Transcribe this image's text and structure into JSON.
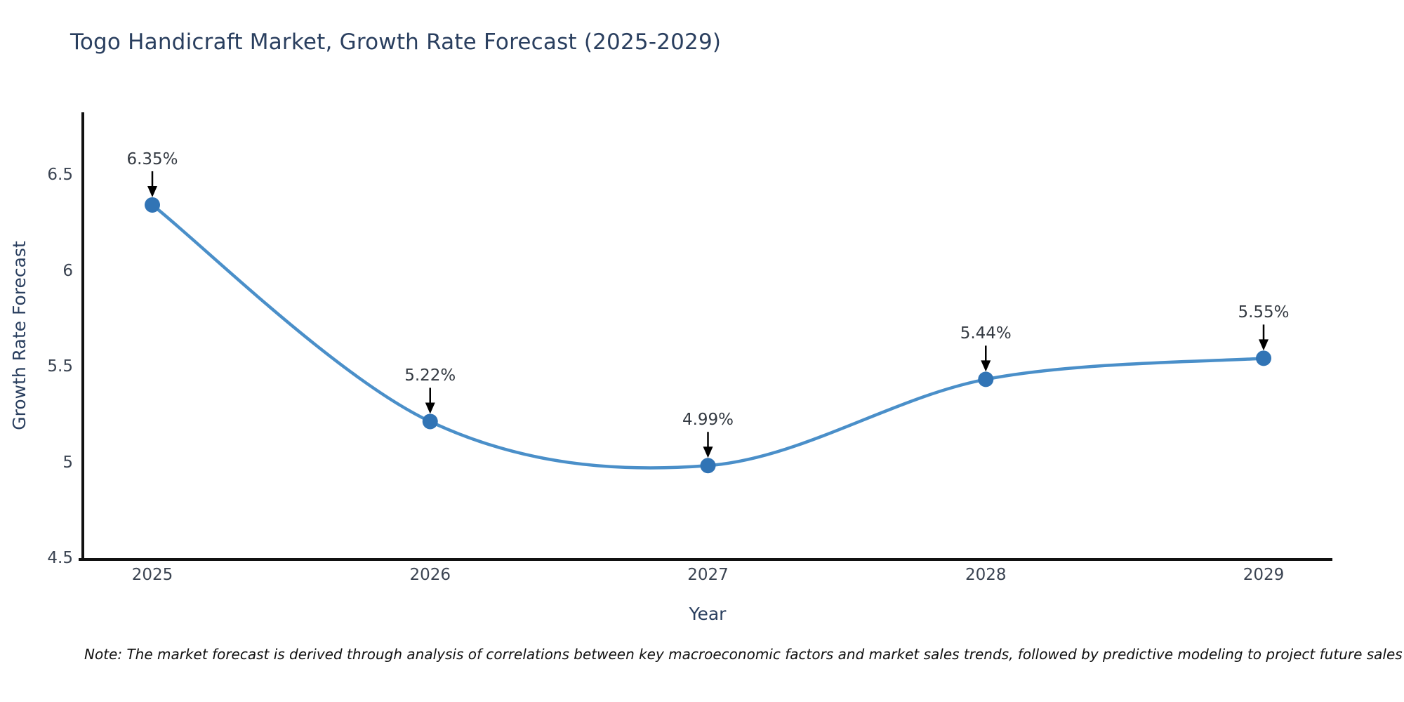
{
  "page": {
    "title": "Togo Handicraft Market, Growth Rate Forecast (2025-2029)",
    "note": "Note: The market forecast is derived through analysis of correlations between key macroeconomic factors and market sales trends, followed by predictive modeling to project future sales"
  },
  "chart_data": {
    "type": "line",
    "title": "Togo Handicraft Market, Growth Rate Forecast (2025-2029)",
    "x": [
      2025,
      2026,
      2027,
      2028,
      2029
    ],
    "x_tick_labels": [
      "2025",
      "2026",
      "2027",
      "2028",
      "2029"
    ],
    "values": [
      6.35,
      5.22,
      4.99,
      5.44,
      5.55
    ],
    "point_labels": [
      "6.35%",
      "5.22%",
      "4.99%",
      "5.44%",
      "5.55%"
    ],
    "xlabel": "Year",
    "ylabel": "Growth Rate Forecast",
    "y_ticks": [
      4.5,
      5,
      5.5,
      6,
      6.5
    ],
    "y_tick_labels": [
      "4.5",
      "5",
      "5.5",
      "6",
      "6.5"
    ],
    "ylim": [
      4.5,
      6.83
    ],
    "grid": false,
    "legend": "none",
    "line_shape": "spline",
    "line_color": "#4a8fc9",
    "marker_color": "#3174b5",
    "arrow_color": "#000000",
    "axis_color": "#111111"
  }
}
